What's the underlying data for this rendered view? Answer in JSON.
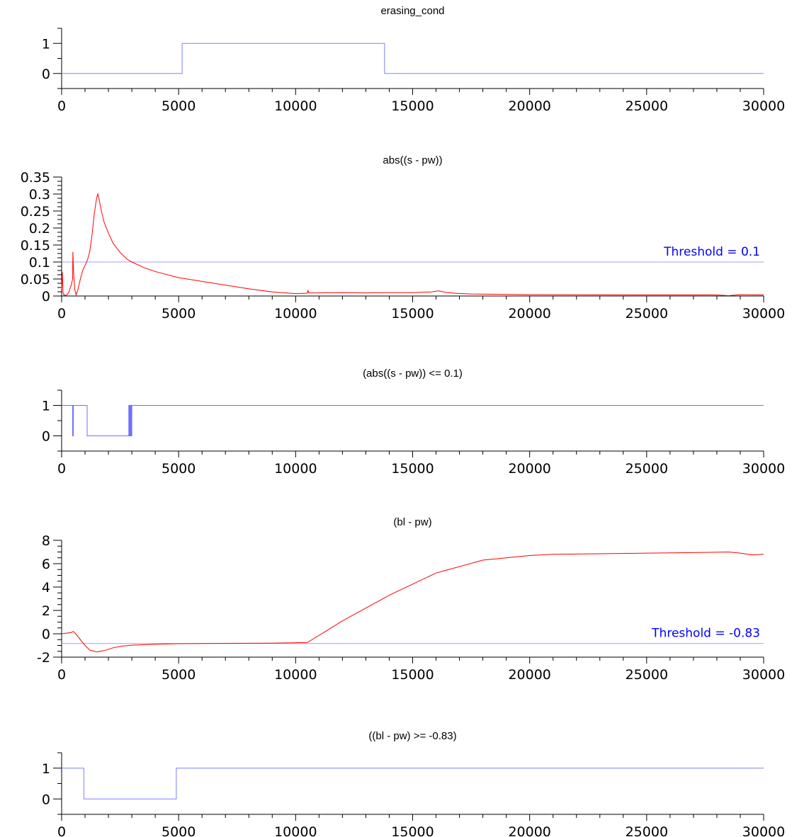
{
  "chart_data": [
    {
      "type": "line",
      "title": "erasing_cond",
      "xlim": [
        0,
        30000
      ],
      "ylim": [
        -0.5,
        1.5
      ],
      "xticks": [
        0,
        5000,
        10000,
        15000,
        20000,
        25000,
        30000
      ],
      "xtick_labels": [
        "0",
        "5000",
        "10000",
        "15000",
        "20000",
        "25000",
        "30000"
      ],
      "yticks": [
        0,
        1
      ],
      "ytick_labels": [
        "0",
        "1"
      ],
      "series": [
        {
          "color": "#7f7fff",
          "step": true,
          "x": [
            0,
            5150,
            5150,
            13800,
            13800,
            30000
          ],
          "y": [
            0,
            0,
            1,
            1,
            0,
            0
          ]
        }
      ]
    },
    {
      "type": "line",
      "title": "abs((s - pw))",
      "xlim": [
        0,
        30000
      ],
      "ylim": [
        0,
        0.35
      ],
      "xticks": [
        0,
        5000,
        10000,
        15000,
        20000,
        25000,
        30000
      ],
      "xtick_labels": [
        "0",
        "5000",
        "10000",
        "15000",
        "20000",
        "25000",
        "30000"
      ],
      "yticks": [
        0,
        0.05,
        0.1,
        0.15,
        0.2,
        0.25,
        0.3,
        0.35
      ],
      "ytick_labels": [
        "0",
        "0.05",
        "0.1",
        "0.15",
        "0.2",
        "0.25",
        "0.3",
        "0.35"
      ],
      "threshold": {
        "value": 0.1,
        "label": "Threshold = 0.1",
        "color": "#0000ff",
        "line_color": "#9f9fff"
      },
      "series": [
        {
          "color": "#ff0000",
          "x": [
            0,
            30,
            60,
            100,
            150,
            200,
            300,
            400,
            470,
            480,
            500,
            520,
            560,
            620,
            700,
            800,
            900,
            1000,
            1100,
            1200,
            1300,
            1400,
            1500,
            1550,
            1600,
            1700,
            1800,
            2000,
            2200,
            2500,
            2800,
            3000,
            3500,
            4000,
            5000,
            6000,
            7000,
            8000,
            9000,
            10000,
            10500,
            10520,
            10560,
            11000,
            12000,
            13000,
            14000,
            15000,
            15800,
            16100,
            16400,
            16800,
            17500,
            20000,
            25000,
            28000,
            28500,
            29000,
            30000
          ],
          "y": [
            0.02,
            0.07,
            0.01,
            0.002,
            0.003,
            0.001,
            0.01,
            0.03,
            0.05,
            0.13,
            0.09,
            0.06,
            0.02,
            0.003,
            0.02,
            0.05,
            0.075,
            0.09,
            0.105,
            0.13,
            0.18,
            0.245,
            0.29,
            0.3,
            0.285,
            0.25,
            0.22,
            0.185,
            0.155,
            0.128,
            0.108,
            0.1,
            0.084,
            0.072,
            0.054,
            0.043,
            0.032,
            0.021,
            0.012,
            0.007,
            0.008,
            0.017,
            0.009,
            0.009,
            0.01,
            0.009,
            0.01,
            0.01,
            0.012,
            0.015,
            0.011,
            0.008,
            0.006,
            0.004,
            0.003,
            0.003,
            0.001,
            0.004,
            0.003
          ]
        }
      ]
    },
    {
      "type": "line",
      "title": "(abs((s - pw)) <= 0.1)",
      "xlim": [
        0,
        30000
      ],
      "ylim": [
        -0.5,
        1.5
      ],
      "xticks": [
        0,
        5000,
        10000,
        15000,
        20000,
        25000,
        30000
      ],
      "xtick_labels": [
        "0",
        "5000",
        "10000",
        "15000",
        "20000",
        "25000",
        "30000"
      ],
      "yticks": [
        0,
        1
      ],
      "ytick_labels": [
        "0",
        "1"
      ],
      "series": [
        {
          "color": "#6f6fff",
          "step": true,
          "x": [
            0,
            470,
            470,
            500,
            500,
            1090,
            1090,
            2870,
            2870,
            2890,
            2890,
            2910,
            2910,
            2930,
            2930,
            2950,
            2950,
            2980,
            2980,
            3000,
            3000,
            30000
          ],
          "y": [
            1,
            1,
            0,
            0,
            1,
            1,
            0,
            0,
            1,
            1,
            0,
            0,
            1,
            1,
            0,
            0,
            1,
            1,
            0,
            0,
            1,
            1
          ]
        }
      ]
    },
    {
      "type": "line",
      "title": "(bl - pw)",
      "xlim": [
        0,
        30000
      ],
      "ylim": [
        -2,
        8
      ],
      "xticks": [
        0,
        5000,
        10000,
        15000,
        20000,
        25000,
        30000
      ],
      "xtick_labels": [
        "0",
        "5000",
        "10000",
        "15000",
        "20000",
        "25000",
        "30000"
      ],
      "yticks": [
        -2,
        0,
        2,
        4,
        6,
        8
      ],
      "ytick_labels": [
        "-2",
        "0",
        "2",
        "4",
        "6",
        "8"
      ],
      "threshold": {
        "value": -0.83,
        "label": "Threshold = -0.83",
        "color": "#0000ff",
        "line_color": "#9f9fff"
      },
      "series": [
        {
          "color": "#ff0000",
          "x": [
            0,
            200,
            400,
            500,
            600,
            800,
            1000,
            1200,
            1500,
            1800,
            2200,
            2600,
            3000,
            4000,
            5000,
            7000,
            9000,
            10500,
            12000,
            14000,
            16000,
            18000,
            19000,
            20000,
            21000,
            23000,
            25000,
            27000,
            28500,
            29000,
            29500,
            30000
          ],
          "y": [
            0.0,
            0.05,
            0.1,
            0.2,
            0.0,
            -0.5,
            -1.0,
            -1.4,
            -1.55,
            -1.45,
            -1.2,
            -1.05,
            -0.98,
            -0.9,
            -0.85,
            -0.82,
            -0.8,
            -0.75,
            1.1,
            3.3,
            5.2,
            6.3,
            6.5,
            6.7,
            6.8,
            6.85,
            6.9,
            6.95,
            7.0,
            6.9,
            6.75,
            6.8
          ]
        }
      ]
    },
    {
      "type": "line",
      "title": "((bl - pw) >= -0.83)",
      "xlim": [
        0,
        30000
      ],
      "ylim": [
        -0.5,
        1.5
      ],
      "xticks": [
        0,
        5000,
        10000,
        15000,
        20000,
        25000,
        30000
      ],
      "xtick_labels": [
        "0",
        "5000",
        "10000",
        "15000",
        "20000",
        "25000",
        "30000"
      ],
      "yticks": [
        0,
        1
      ],
      "ytick_labels": [
        "0",
        "1"
      ],
      "series": [
        {
          "color": "#7f7fff",
          "step": true,
          "x": [
            0,
            950,
            950,
            4900,
            4900,
            30000
          ],
          "y": [
            1,
            1,
            0,
            0,
            1,
            1
          ]
        }
      ]
    }
  ]
}
